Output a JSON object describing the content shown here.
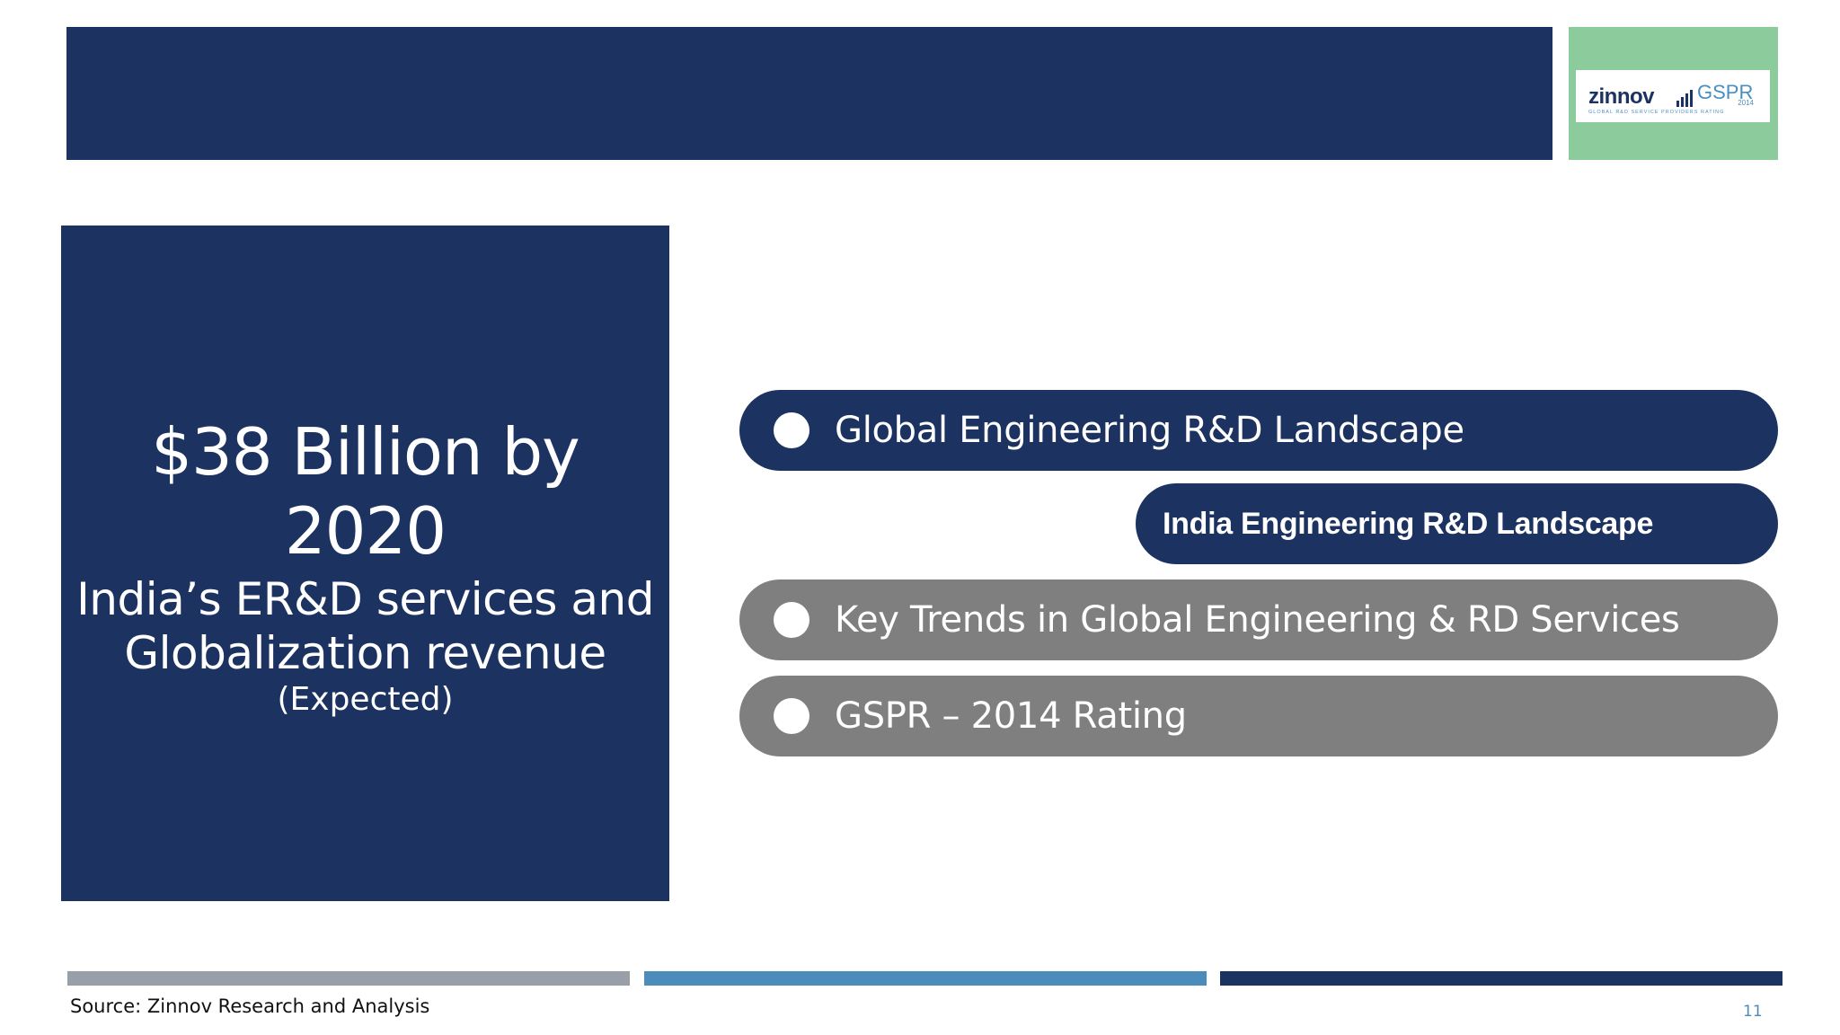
{
  "header": {
    "logo": {
      "word": "zinnov",
      "product": "GSPR",
      "year": "2014",
      "tagline": "GLOBAL R&D SERVICE PROVIDERS RATING"
    }
  },
  "stat": {
    "headline_line1": "$38 Billion by",
    "headline_line2": "2020",
    "description_line1": "India’s ER&D services and",
    "description_line2": "Globalization revenue",
    "note": "(Expected)"
  },
  "agenda": {
    "items": [
      {
        "label": "Global Engineering R&D Landscape"
      },
      {
        "label": "India Engineering R&D Landscape"
      },
      {
        "label": "Key Trends in Global Engineering & RD Services"
      },
      {
        "label": "GSPR – 2014 Rating"
      }
    ]
  },
  "footer": {
    "source": "Source: Zinnov Research and Analysis",
    "page_number": "11"
  },
  "colors": {
    "navy": "#1c3261",
    "grey": "#7f7f7f",
    "mint": "#8bcb9c",
    "steel_blue": "#4b8cbb",
    "light_grey": "#989fa9"
  }
}
